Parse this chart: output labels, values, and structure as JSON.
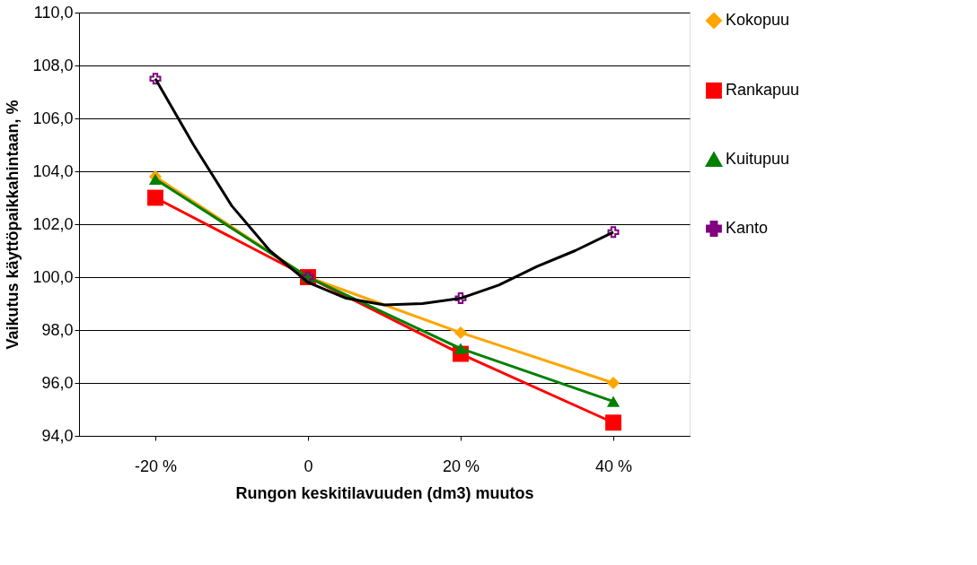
{
  "chart_data": {
    "type": "line",
    "xlabel": "Rungon keskitilavuuden (dm3) muutos",
    "ylabel": "Vaikutus käyttöpaikkahintaan, %",
    "x": [
      -20,
      0,
      20,
      40
    ],
    "xlim": [
      -30,
      50
    ],
    "xticks": [
      {
        "value": -20,
        "label": "-20 %"
      },
      {
        "value": 0,
        "label": "0"
      },
      {
        "value": 20,
        "label": "20 %"
      },
      {
        "value": 40,
        "label": "40 %"
      }
    ],
    "ylim": [
      94,
      110
    ],
    "yticks": [
      {
        "value": 94,
        "label": "94,0"
      },
      {
        "value": 96,
        "label": "96,0"
      },
      {
        "value": 98,
        "label": "98,0"
      },
      {
        "value": 100,
        "label": "100,0"
      },
      {
        "value": 102,
        "label": "102,0"
      },
      {
        "value": 104,
        "label": "104,0"
      },
      {
        "value": 106,
        "label": "106,0"
      },
      {
        "value": 108,
        "label": "108,0"
      },
      {
        "value": 110,
        "label": "110,0"
      }
    ],
    "grid": "y",
    "legend": "right",
    "series": [
      {
        "name": "Kokopuu",
        "color": "#ffa500",
        "marker": "diamond",
        "values": [
          103.8,
          100.0,
          97.9,
          96.0
        ]
      },
      {
        "name": "Rankapuu",
        "color": "#ff0000",
        "marker": "square",
        "values": [
          103.0,
          100.0,
          97.1,
          94.5
        ]
      },
      {
        "name": "Kuitupuu",
        "color": "#008000",
        "marker": "triangle",
        "values": [
          103.7,
          100.0,
          97.3,
          95.3
        ]
      },
      {
        "name": "Kanto",
        "type": "scatter",
        "color": "#800080",
        "marker": "cross",
        "values": [
          107.5,
          100.0,
          99.2,
          101.7
        ]
      },
      {
        "type": "line",
        "color": "#000000",
        "marker": "none",
        "x": [
          -20,
          -15,
          -10,
          -5,
          0,
          5,
          10,
          15,
          20,
          25,
          30,
          35,
          40
        ],
        "values": [
          107.5,
          105.0,
          102.7,
          101.0,
          99.8,
          99.2,
          98.95,
          99.0,
          99.2,
          99.7,
          100.4,
          101.0,
          101.7
        ]
      }
    ]
  }
}
